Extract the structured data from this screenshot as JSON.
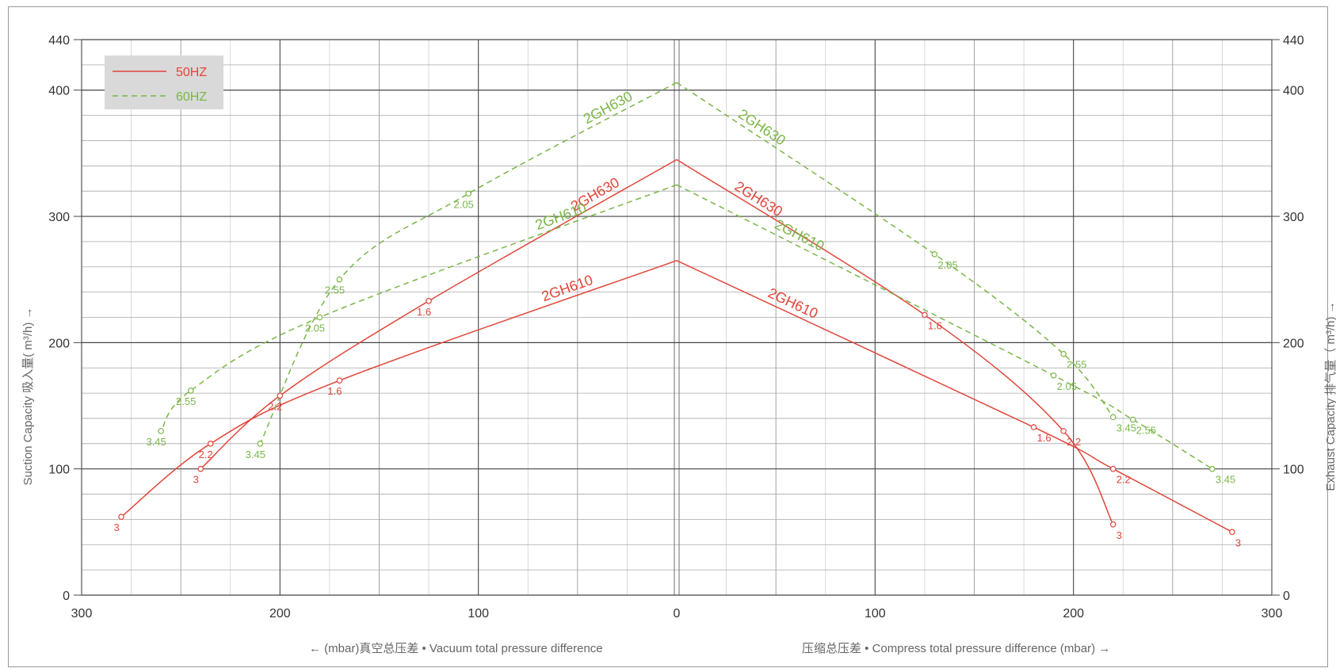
{
  "chart_data": {
    "type": "line",
    "x_axis": {
      "left_ticks": [
        "300",
        "200",
        "100",
        "0"
      ],
      "right_ticks": [
        "100",
        "200",
        "300"
      ],
      "left_label": "←  (mbar)真空总压差 •  Vacuum total pressure difference",
      "right_label": "压缩总压差 • Compress total pressure difference (mbar)  →",
      "range": [
        0,
        300
      ]
    },
    "y_axis": {
      "ticks": [
        "0",
        "100",
        "200",
        "300",
        "400",
        "440"
      ],
      "left_label": "Suction Capacity  吸入量( m³/h) →",
      "right_label": "Exhaust Capacity  排气量（ m³/h) →",
      "range": [
        0,
        440
      ]
    },
    "grid": true,
    "legend": {
      "placement": "top-left",
      "items": [
        {
          "name": "50HZ",
          "color": "#e0463a",
          "dash": false
        },
        {
          "name": "60HZ",
          "color": "#7ab648",
          "dash": true
        }
      ]
    },
    "colors": {
      "50HZ": "#e0463a",
      "60HZ": "#7ab648"
    },
    "series": [
      {
        "name": "2GH630",
        "freq": "50HZ",
        "side": "vacuum",
        "points": [
          {
            "x": 0,
            "y": 345
          },
          {
            "x": 125,
            "y": 233,
            "label": "1.6"
          },
          {
            "x": 200,
            "y": 158,
            "label": "2.2"
          },
          {
            "x": 240,
            "y": 100,
            "label": "3"
          }
        ]
      },
      {
        "name": "2GH610",
        "freq": "50HZ",
        "side": "vacuum",
        "points": [
          {
            "x": 0,
            "y": 265
          },
          {
            "x": 170,
            "y": 170,
            "label": "1.6"
          },
          {
            "x": 235,
            "y": 120,
            "label": "2.2"
          },
          {
            "x": 280,
            "y": 62,
            "label": "3"
          }
        ]
      },
      {
        "name": "2GH630",
        "freq": "60HZ",
        "side": "vacuum",
        "points": [
          {
            "x": 0,
            "y": 406
          },
          {
            "x": 105,
            "y": 318,
            "label": "2.05"
          },
          {
            "x": 170,
            "y": 250,
            "label": "2.55"
          },
          {
            "x": 210,
            "y": 120,
            "label": "3.45"
          }
        ]
      },
      {
        "name": "2GH610",
        "freq": "60HZ",
        "side": "vacuum",
        "points": [
          {
            "x": 0,
            "y": 325
          },
          {
            "x": 180,
            "y": 220,
            "label": "2.05"
          },
          {
            "x": 245,
            "y": 162,
            "label": "2.55"
          },
          {
            "x": 260,
            "y": 130,
            "label": "3.45"
          }
        ]
      },
      {
        "name": "2GH630",
        "freq": "50HZ",
        "side": "compress",
        "points": [
          {
            "x": 0,
            "y": 345
          },
          {
            "x": 125,
            "y": 222,
            "label": "1.6"
          },
          {
            "x": 195,
            "y": 130,
            "label": "2.2"
          },
          {
            "x": 220,
            "y": 56,
            "label": "3"
          }
        ]
      },
      {
        "name": "2GH610",
        "freq": "50HZ",
        "side": "compress",
        "points": [
          {
            "x": 0,
            "y": 265
          },
          {
            "x": 180,
            "y": 133,
            "label": "1.6"
          },
          {
            "x": 220,
            "y": 100,
            "label": "2.2"
          },
          {
            "x": 280,
            "y": 50,
            "label": "3"
          }
        ]
      },
      {
        "name": "2GH630",
        "freq": "60HZ",
        "side": "compress",
        "points": [
          {
            "x": 0,
            "y": 406
          },
          {
            "x": 130,
            "y": 270,
            "label": "2.05"
          },
          {
            "x": 195,
            "y": 191,
            "label": "2.55"
          },
          {
            "x": 220,
            "y": 141,
            "label": "3.45"
          }
        ]
      },
      {
        "name": "2GH610",
        "freq": "60HZ",
        "side": "compress",
        "points": [
          {
            "x": 0,
            "y": 325
          },
          {
            "x": 190,
            "y": 174,
            "label": "2.05"
          },
          {
            "x": 230,
            "y": 139,
            "label": "2.55"
          },
          {
            "x": 270,
            "y": 100,
            "label": "3.45"
          }
        ]
      }
    ]
  }
}
